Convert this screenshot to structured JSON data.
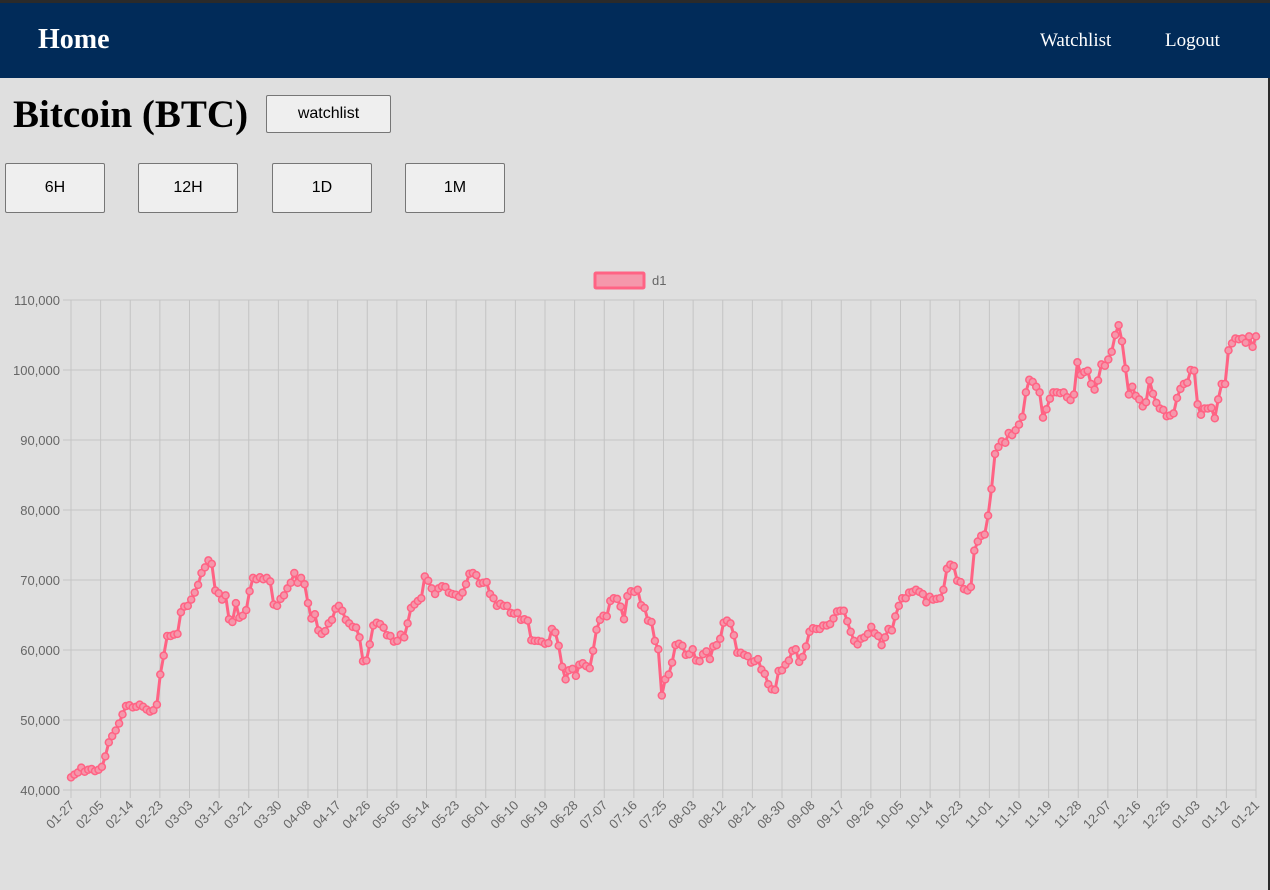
{
  "nav": {
    "home_label": "Home",
    "watchlist_label": "Watchlist",
    "logout_label": "Logout"
  },
  "coin": {
    "title": "Bitcoin (BTC)",
    "watchlist_button": "watchlist"
  },
  "ranges": [
    "6H",
    "12H",
    "1D",
    "1M"
  ],
  "colors": {
    "navbar": "#012b59",
    "line": "#ff6384",
    "legend_fill": "#f597ab"
  },
  "chart_data": {
    "type": "line",
    "title": "",
    "xlabel": "",
    "ylabel": "",
    "legend": "d1",
    "legend_position": "top",
    "grid": true,
    "ylim": [
      40000,
      110000
    ],
    "y_ticks": [
      "40,000",
      "50,000",
      "60,000",
      "70,000",
      "80,000",
      "90,000",
      "100,000",
      "110,000"
    ],
    "x_ticks": [
      "01-27",
      "02-05",
      "02-14",
      "02-23",
      "03-03",
      "03-12",
      "03-21",
      "03-30",
      "04-08",
      "04-17",
      "04-26",
      "05-05",
      "05-14",
      "05-23",
      "06-01",
      "06-10",
      "06-19",
      "06-28",
      "07-07",
      "07-16",
      "07-25",
      "08-03",
      "08-12",
      "08-21",
      "08-30",
      "09-08",
      "09-17",
      "09-26",
      "10-05",
      "10-14",
      "10-23",
      "11-01",
      "11-10",
      "11-19",
      "11-28",
      "12-07",
      "12-16",
      "12-25",
      "01-03",
      "01-12",
      "01-21"
    ],
    "series": [
      {
        "name": "d1",
        "values": [
          41800,
          42200,
          42500,
          43200,
          42600,
          42900,
          43000,
          42700,
          42900,
          43300,
          44800,
          46800,
          47700,
          48500,
          49500,
          50800,
          52000,
          52100,
          51800,
          51900,
          52200,
          51900,
          51500,
          51200,
          51400,
          52200,
          56500,
          59200,
          62000,
          62000,
          62200,
          62300,
          65400,
          66200,
          66300,
          67200,
          68200,
          69300,
          71000,
          71800,
          72800,
          72300,
          68500,
          68100,
          67200,
          67800,
          64400,
          64000,
          66700,
          64600,
          64900,
          65700,
          68400,
          70300,
          70100,
          70400,
          70100,
          70300,
          69800,
          66500,
          66300,
          67300,
          67800,
          68800,
          69600,
          71000,
          69600,
          70300,
          69400,
          66700,
          64500,
          65100,
          62800,
          62300,
          62700,
          63800,
          64300,
          65900,
          66300,
          65600,
          64300,
          63800,
          63300,
          63200,
          61800,
          58400,
          58500,
          60800,
          63500,
          63900,
          63700,
          63200,
          62100,
          62000,
          61200,
          61300,
          62200,
          61800,
          63800,
          66000,
          66500,
          67000,
          67400,
          70500,
          69900,
          68800,
          68000,
          68800,
          69100,
          69000,
          68200,
          68000,
          67900,
          67600,
          68200,
          69400,
          70900,
          71000,
          70700,
          69500,
          69600,
          69700,
          68000,
          67400,
          66300,
          66600,
          66300,
          66300,
          65300,
          65200,
          65300,
          64300,
          64400,
          64200,
          61400,
          61300,
          61300,
          61200,
          60900,
          61000,
          63000,
          62500,
          60600,
          57600,
          55800,
          57100,
          57300,
          56300,
          57900,
          58100,
          57700,
          57400,
          59900,
          62900,
          64300,
          64900,
          64800,
          67000,
          67400,
          67300,
          66200,
          64400,
          67700,
          68400,
          68300,
          68600,
          66400,
          66000,
          64200,
          64000,
          61300,
          60100,
          53500,
          55800,
          56500,
          58200,
          60700,
          60900,
          60600,
          59300,
          59400,
          60100,
          58500,
          58400,
          59400,
          59800,
          58700,
          60500,
          60700,
          61600,
          63900,
          64200,
          63800,
          62100,
          59600,
          59600,
          59300,
          59100,
          58200,
          58400,
          58700,
          57200,
          56600,
          55100,
          54400,
          54300,
          57000,
          57100,
          57900,
          58500,
          59900,
          60100,
          58300,
          59000,
          60500,
          62600,
          63100,
          63000,
          63000,
          63500,
          63500,
          63700,
          64500,
          65500,
          65600,
          65600,
          64100,
          62600,
          61300,
          60800,
          61600,
          61800,
          62300,
          63300,
          62400,
          62000,
          60700,
          61800,
          63000,
          62800,
          64800,
          66300,
          67400,
          67400,
          68200,
          68300,
          68600,
          68300,
          68000,
          66800,
          67600,
          67200,
          67300,
          67400,
          68600,
          71600,
          72200,
          72000,
          69900,
          69700,
          68700,
          68500,
          69000,
          74200,
          75500,
          76300,
          76500,
          79200,
          83000,
          88000,
          89000,
          89800,
          89600,
          91000,
          90700,
          91400,
          92200,
          93300,
          96800,
          98600,
          98300,
          97600,
          96800,
          93200,
          94400,
          95900,
          96800,
          96800,
          96700,
          96800,
          96100,
          95700,
          96500,
          101100,
          99300,
          99700,
          99900,
          98000,
          97200,
          98500,
          100800,
          100600,
          101500,
          102600,
          105000,
          106400,
          104100,
          100200,
          96500,
          97600,
          96300,
          95800,
          94800,
          95400,
          98500,
          96600,
          95300,
          94500,
          94300,
          93400,
          93500,
          93800,
          96000,
          97300,
          98000,
          98200,
          100000,
          99900,
          95100,
          93600,
          94500,
          94500,
          94600,
          93100,
          95800,
          98000,
          98000,
          102800,
          103800,
          104500,
          104400,
          104500,
          103900,
          104800,
          103300,
          104800
        ]
      }
    ]
  }
}
